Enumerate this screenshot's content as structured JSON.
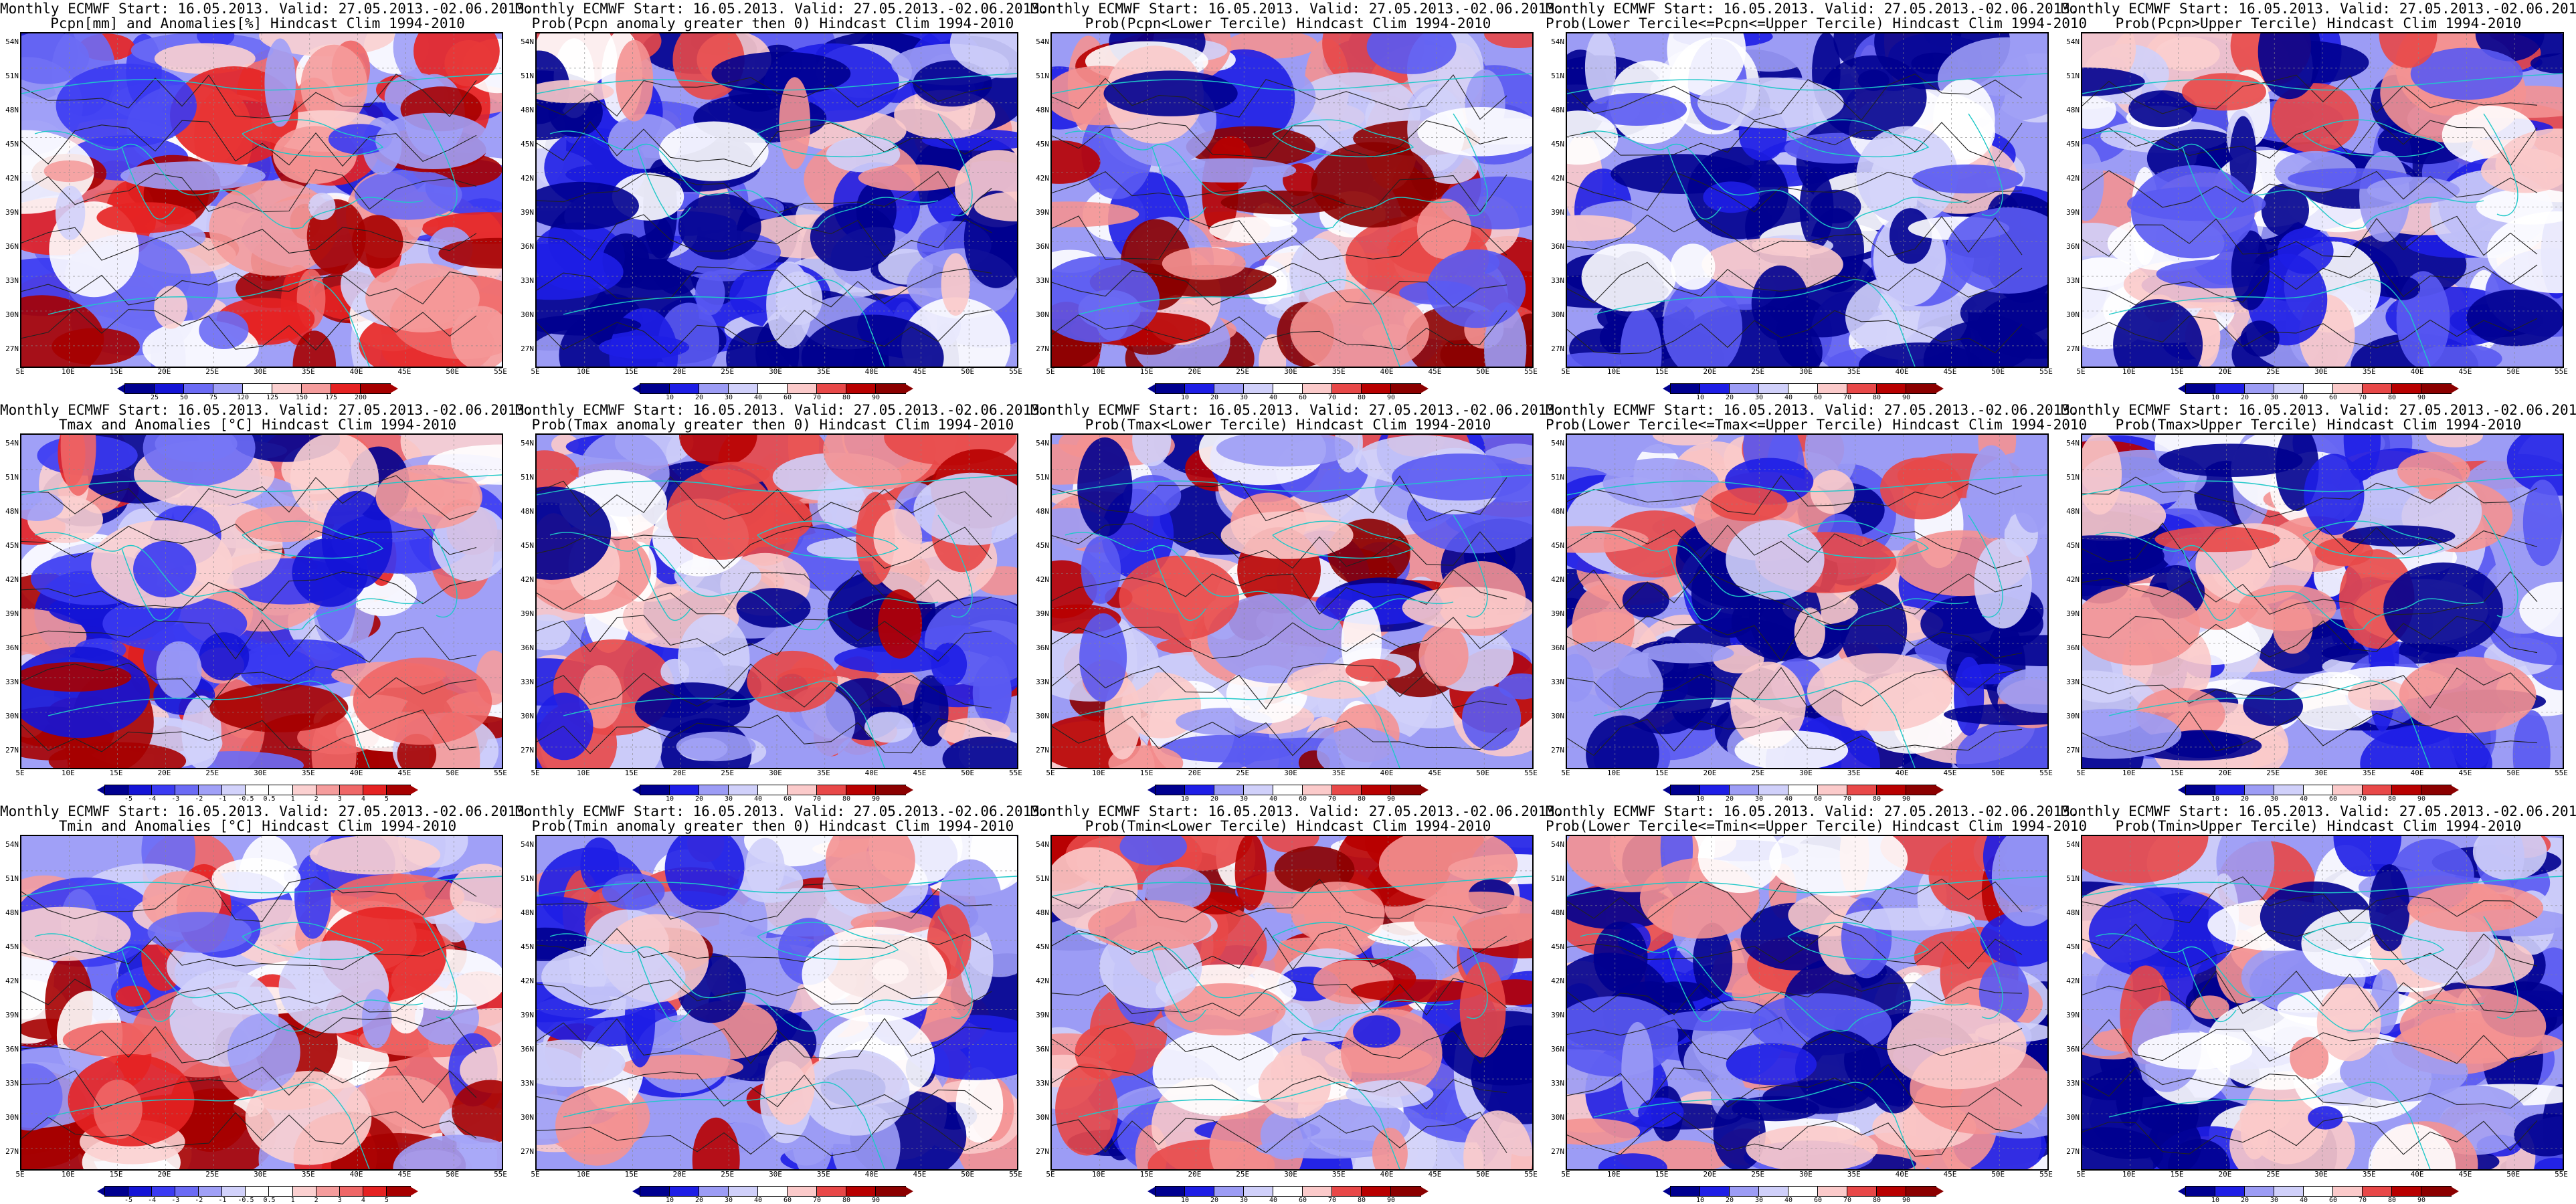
{
  "latitude_ticks": [
    "54N",
    "51N",
    "48N",
    "45N",
    "42N",
    "39N",
    "36N",
    "33N",
    "30N",
    "27N"
  ],
  "longitude_ticks": [
    "5E",
    "10E",
    "15E",
    "20E",
    "25E",
    "30E",
    "35E",
    "40E",
    "45E",
    "50E",
    "55E"
  ],
  "colors": {
    "coast": "#1fc8c8",
    "contour": "#222222",
    "div_scale": [
      "#00008f",
      "#1414d6",
      "#3a3af2",
      "#6b6bf5",
      "#a0a0f7",
      "#d2d2fb",
      "#ffffff",
      "#fbd0d0",
      "#f59c9c",
      "#ef6767",
      "#e52222",
      "#a60000"
    ],
    "prob_scale": [
      "#00008f",
      "#1e1ee6",
      "#5a5af2",
      "#9c9cf5",
      "#d0d0fa",
      "#ffffff",
      "#fbcaca",
      "#f49292",
      "#e84848",
      "#b80000",
      "#8b0000"
    ]
  },
  "panels": [
    {
      "row": 0,
      "col": 0,
      "title1": "Monthly ECMWF Start: 16.05.2013. Valid: 27.05.2013.-02.06.2013.",
      "title2": "Pcpn[mm] and Anomalies[%] Hindcast Clim 1994-2010",
      "scale": "pcpn",
      "bias": 0.2,
      "seed": 11,
      "colorbar": {
        "ticks": [
          "25",
          "50",
          "75",
          "120",
          "125",
          "150",
          "175",
          "200"
        ]
      }
    },
    {
      "row": 0,
      "col": 1,
      "title1": "Monthly ECMWF Start: 16.05.2013. Valid: 27.05.2013.-02.06.2013.",
      "title2": "Prob(Pcpn anomaly greater then 0) Hindcast Clim 1994-2010",
      "scale": "prob",
      "bias": -0.45,
      "seed": 23,
      "colorbar": {
        "ticks": [
          "10",
          "20",
          "30",
          "40",
          "60",
          "70",
          "80",
          "90"
        ]
      }
    },
    {
      "row": 0,
      "col": 2,
      "title1": "Monthly ECMWF Start: 16.05.2013. Valid: 27.05.2013.-02.06.2013.",
      "title2": "Prob(Pcpn<Lower Tercile) Hindcast Clim 1994-2010",
      "scale": "prob",
      "bias": 0.15,
      "seed": 37,
      "colorbar": {
        "ticks": [
          "10",
          "20",
          "30",
          "40",
          "60",
          "70",
          "80",
          "90"
        ]
      }
    },
    {
      "row": 0,
      "col": 3,
      "title1": "Monthly ECMWF Start: 16.05.2013. Valid: 27.05.2013.-02.06.2013.",
      "title2": "Prob(Lower Tercile<=Pcpn<=Upper Tercile) Hindcast Clim 1994-2010",
      "scale": "prob",
      "bias": -0.6,
      "seed": 41,
      "colorbar": {
        "ticks": [
          "10",
          "20",
          "30",
          "40",
          "60",
          "70",
          "80",
          "90"
        ]
      }
    },
    {
      "row": 0,
      "col": 4,
      "title1": "Monthly ECMWF Start: 16.05.2013. Valid: 27.05.2013.-02.06.2013.",
      "title2": "Prob(Pcpn>Upper Tercile) Hindcast Clim 1994-2010",
      "scale": "prob",
      "bias": -0.4,
      "seed": 53,
      "colorbar": {
        "ticks": [
          "10",
          "20",
          "30",
          "40",
          "60",
          "70",
          "80",
          "90"
        ]
      }
    },
    {
      "row": 1,
      "col": 0,
      "title1": "Monthly ECMWF Start: 16.05.2013. Valid: 27.05.2013.-02.06.2013.",
      "title2": "Tmax and Anomalies [°C] Hindcast Clim 1994-2010",
      "scale": "anom",
      "bias": 0.05,
      "seed": 61,
      "colorbar": {
        "ticks": [
          "-5",
          "-4",
          "-3",
          "-2",
          "-1",
          "-0.5",
          "0.5",
          "1",
          "2",
          "3",
          "4",
          "5"
        ]
      }
    },
    {
      "row": 1,
      "col": 1,
      "title1": "Monthly ECMWF Start: 16.05.2013. Valid: 27.05.2013.-02.06.2013.",
      "title2": "Prob(Tmax anomaly greater then 0) Hindcast Clim 1994-2010",
      "scale": "prob",
      "bias": -0.1,
      "seed": 71,
      "colorbar": {
        "ticks": [
          "10",
          "20",
          "30",
          "40",
          "60",
          "70",
          "80",
          "90"
        ]
      }
    },
    {
      "row": 1,
      "col": 2,
      "title1": "Monthly ECMWF Start: 16.05.2013. Valid: 27.05.2013.-02.06.2013.",
      "title2": "Prob(Tmax<Lower Tercile) Hindcast Clim 1994-2010",
      "scale": "prob",
      "bias": 0.0,
      "seed": 83,
      "colorbar": {
        "ticks": [
          "10",
          "20",
          "30",
          "40",
          "60",
          "70",
          "80",
          "90"
        ]
      }
    },
    {
      "row": 1,
      "col": 3,
      "title1": "Monthly ECMWF Start: 16.05.2013. Valid: 27.05.2013.-02.06.2013.",
      "title2": "Prob(Lower Tercile<=Tmax<=Upper Tercile) Hindcast Clim 1994-2010",
      "scale": "prob",
      "bias": -0.35,
      "seed": 97,
      "colorbar": {
        "ticks": [
          "10",
          "20",
          "30",
          "40",
          "60",
          "70",
          "80",
          "90"
        ]
      }
    },
    {
      "row": 1,
      "col": 4,
      "title1": "Monthly ECMWF Start: 16.05.2013. Valid: 27.05.2013.-02.06.2013.",
      "title2": "Prob(Tmax>Upper Tercile) Hindcast Clim 1994-2010",
      "scale": "prob",
      "bias": -0.35,
      "seed": 101,
      "colorbar": {
        "ticks": [
          "10",
          "20",
          "30",
          "40",
          "60",
          "70",
          "80",
          "90"
        ]
      }
    },
    {
      "row": 2,
      "col": 0,
      "title1": "Monthly ECMWF Start: 16.05.2013. Valid: 27.05.2013.-02.06.2013.",
      "title2": "Tmin and Anomalies [°C] Hindcast Clim 1994-2010",
      "scale": "anom",
      "bias": 0.15,
      "seed": 113,
      "colorbar": {
        "ticks": [
          "-5",
          "-4",
          "-3",
          "-2",
          "-1",
          "-0.5",
          "0.5",
          "1",
          "2",
          "3",
          "4",
          "5"
        ]
      }
    },
    {
      "row": 2,
      "col": 1,
      "title1": "Monthly ECMWF Start: 16.05.2013. Valid: 27.05.2013.-02.06.2013.",
      "title2": "Prob(Tmin anomaly greater then 0) Hindcast Clim 1994-2010",
      "scale": "prob",
      "bias": -0.05,
      "seed": 127,
      "colorbar": {
        "ticks": [
          "10",
          "20",
          "30",
          "40",
          "60",
          "70",
          "80",
          "90"
        ]
      }
    },
    {
      "row": 2,
      "col": 2,
      "title1": "Monthly ECMWF Start: 16.05.2013. Valid: 27.05.2013.-02.06.2013.",
      "title2": "Prob(Tmin<Lower Tercile) Hindcast Clim 1994-2010",
      "scale": "prob",
      "bias": -0.1,
      "seed": 131,
      "colorbar": {
        "ticks": [
          "10",
          "20",
          "30",
          "40",
          "60",
          "70",
          "80",
          "90"
        ]
      }
    },
    {
      "row": 2,
      "col": 3,
      "title1": "Monthly ECMWF Start: 16.05.2013. Valid: 27.05.2013.-02.06.2013.",
      "title2": "Prob(Lower Tercile<=Tmin<=Upper Tercile) Hindcast Clim 1994-2010",
      "scale": "prob",
      "bias": -0.3,
      "seed": 139,
      "colorbar": {
        "ticks": [
          "10",
          "20",
          "30",
          "40",
          "60",
          "70",
          "80",
          "90"
        ]
      }
    },
    {
      "row": 2,
      "col": 4,
      "title1": "Monthly ECMWF Start: 16.05.2013. Valid: 27.05.2013.-02.06.2013.",
      "title2": "Prob(Tmin>Upper Tercile) Hindcast Clim 1994-2010",
      "scale": "prob",
      "bias": -0.35,
      "seed": 149,
      "colorbar": {
        "ticks": [
          "10",
          "20",
          "30",
          "40",
          "60",
          "70",
          "80",
          "90"
        ]
      }
    }
  ]
}
